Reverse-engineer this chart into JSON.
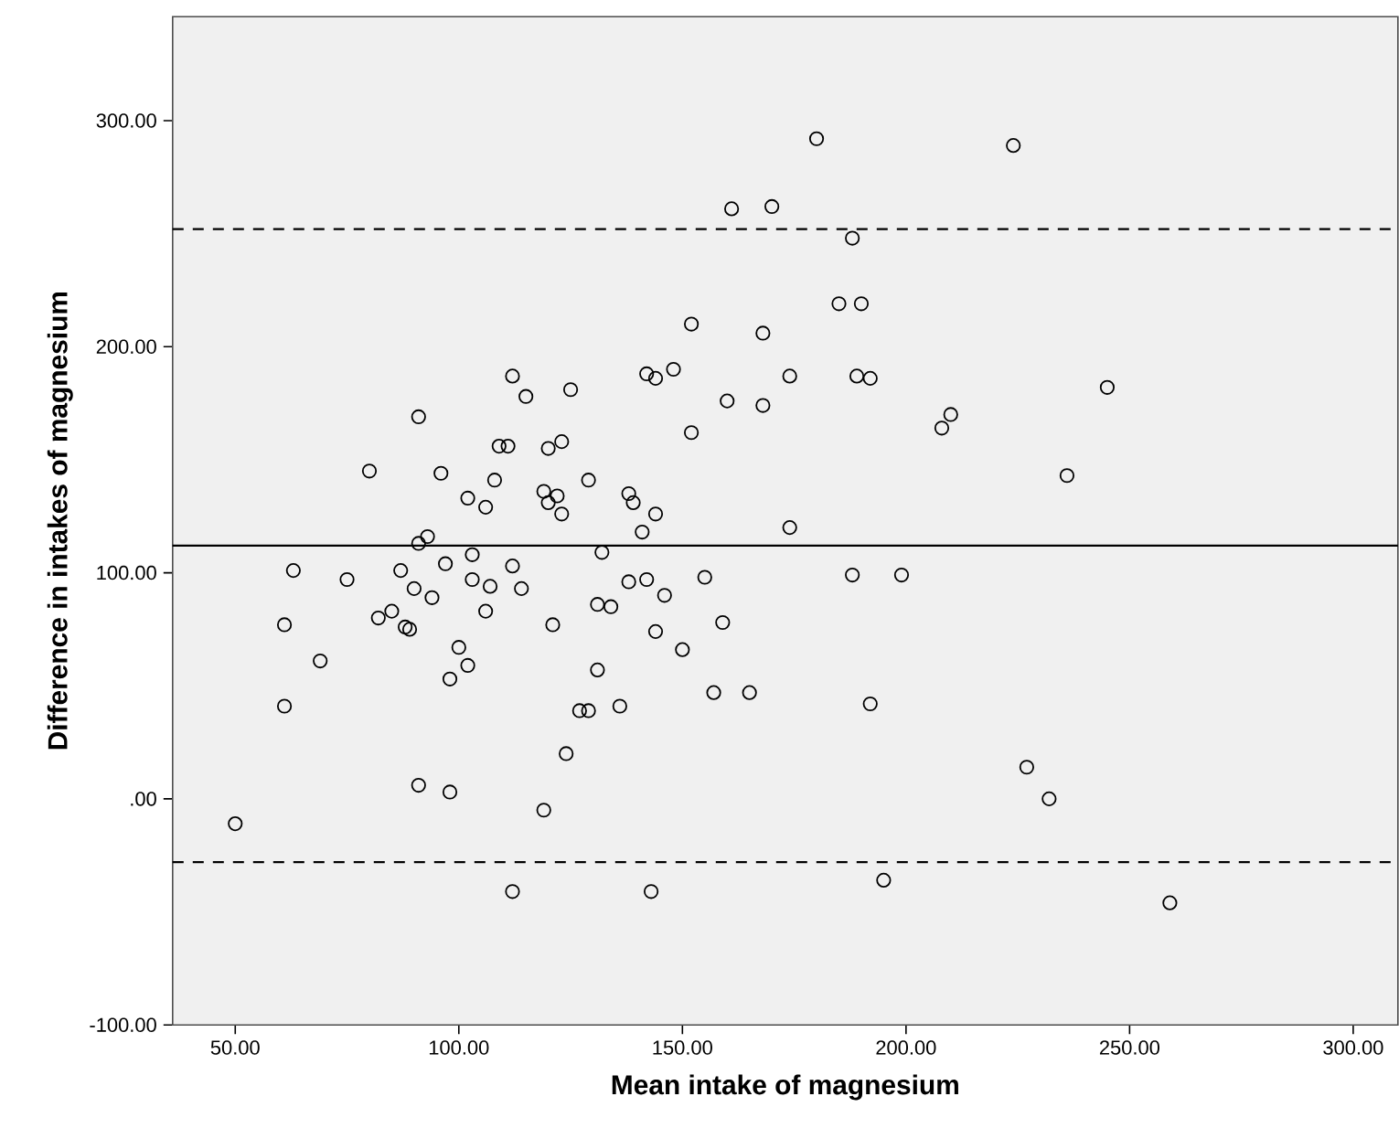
{
  "chart_data": {
    "type": "scatter",
    "xlabel": "Mean intake of magnesium",
    "ylabel": "Difference in intakes of magnesium",
    "xlim": [
      36,
      310
    ],
    "ylim": [
      -100,
      346
    ],
    "xticks": [
      {
        "value": 50,
        "label": "50.00"
      },
      {
        "value": 100,
        "label": "100.00"
      },
      {
        "value": 150,
        "label": "150.00"
      },
      {
        "value": 200,
        "label": "200.00"
      },
      {
        "value": 250,
        "label": "250.00"
      },
      {
        "value": 300,
        "label": "300.00"
      }
    ],
    "yticks": [
      {
        "value": -100,
        "label": "-100.00"
      },
      {
        "value": 0,
        "label": ".00"
      },
      {
        "value": 100,
        "label": "100.00"
      },
      {
        "value": 200,
        "label": "200.00"
      },
      {
        "value": 300,
        "label": "300.00"
      }
    ],
    "marker": "circle",
    "color": "#000000",
    "x": [
      152,
      148,
      142,
      144,
      112,
      115,
      125,
      91,
      109,
      111,
      120,
      123,
      152,
      80,
      96,
      108,
      129,
      102,
      106,
      119,
      120,
      122,
      123,
      138,
      139,
      144,
      141,
      91,
      93,
      103,
      132,
      63,
      75,
      87,
      97,
      112,
      90,
      94,
      103,
      107,
      114,
      138,
      142,
      146,
      155,
      131,
      134,
      61,
      82,
      85,
      88,
      89,
      106,
      121,
      144,
      150,
      69,
      100,
      102,
      98,
      131,
      61,
      127,
      129,
      136,
      124,
      91,
      98,
      119,
      50,
      157,
      165,
      180,
      224,
      161,
      170,
      188,
      185,
      190,
      168,
      174,
      189,
      192,
      160,
      168,
      208,
      210,
      245,
      236,
      174,
      188,
      199,
      159,
      192,
      227,
      232,
      112,
      143,
      195,
      259
    ],
    "values": [
      210,
      190,
      188,
      186,
      187,
      178,
      181,
      169,
      156,
      156,
      155,
      158,
      162,
      145,
      144,
      141,
      141,
      133,
      129,
      136,
      131,
      134,
      126,
      135,
      131,
      126,
      118,
      113,
      116,
      108,
      109,
      101,
      97,
      101,
      104,
      103,
      93,
      89,
      97,
      94,
      93,
      96,
      97,
      90,
      98,
      86,
      85,
      77,
      80,
      83,
      76,
      75,
      83,
      77,
      74,
      66,
      61,
      67,
      59,
      53,
      57,
      41,
      39,
      39,
      41,
      20,
      6,
      3,
      -5,
      -11,
      47,
      47,
      292,
      289,
      261,
      262,
      248,
      219,
      219,
      206,
      187,
      187,
      186,
      176,
      174,
      164,
      170,
      182,
      143,
      120,
      99,
      99,
      78,
      42,
      14,
      0,
      -41,
      -41,
      -36,
      -46
    ],
    "ref_lines": [
      {
        "axis": "y",
        "value": 112,
        "line_style": "solid"
      },
      {
        "axis": "y",
        "value": 252,
        "line_style": "dashed"
      },
      {
        "axis": "y",
        "value": -28,
        "line_style": "dashed"
      }
    ]
  }
}
